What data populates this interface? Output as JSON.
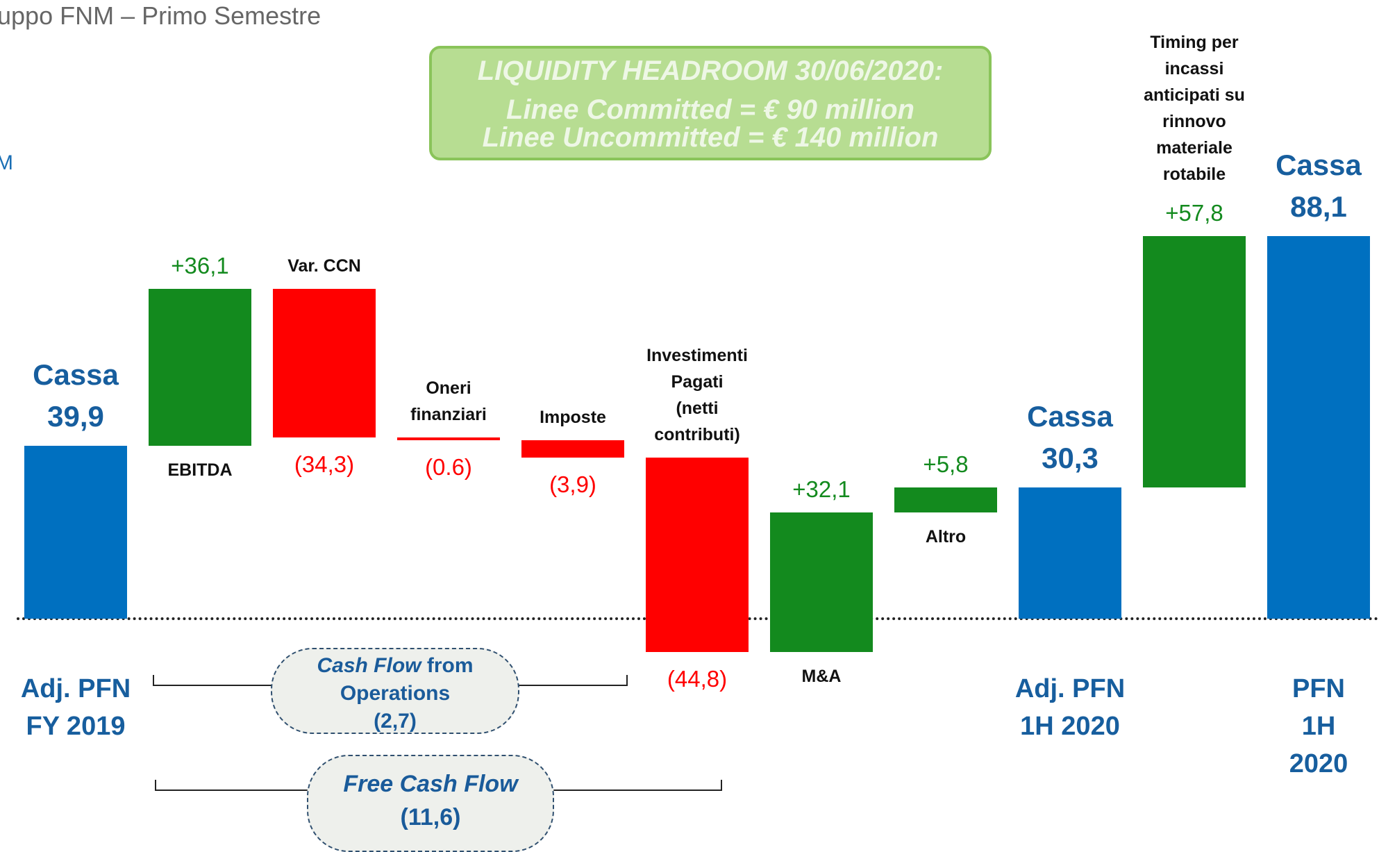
{
  "header": {
    "title": "uppo FNM – Primo Semestre",
    "subtitle": "M"
  },
  "headroom": {
    "title": "LIQUIDITY HEADROOM 30/06/2020:",
    "lines": [
      "Linee Committed = € 90 million",
      "Linee Uncommitted = € 140 million"
    ]
  },
  "chart_data": {
    "type": "waterfall",
    "categories": [
      "Adj. PFN\nFY 2019",
      "EBITDA",
      "Var. CCN",
      "Oneri\nfinanziari",
      "Imposte",
      "Investimenti\nPagati\n(netti\ncontributi)",
      "M&A",
      "Altro",
      "Adj. PFN\n1H 2020",
      "Timing per\nincassi\nanticipati su\nrinnovo\nmateriale\nrotabile",
      "PFN\n1H 2020"
    ],
    "values": [
      39.9,
      36.1,
      -34.3,
      -0.6,
      -3.9,
      -44.8,
      32.1,
      5.8,
      30.3,
      57.8,
      88.1
    ],
    "value_labels": [
      "39,9",
      "+36,1",
      "(34,3)",
      "(0.6)",
      "(3,9)",
      "(44,8)",
      "+32,1",
      "+5,8",
      "30,3",
      "+57,8",
      "88,1"
    ],
    "totals": [
      true,
      false,
      false,
      false,
      false,
      false,
      false,
      false,
      true,
      false,
      true
    ],
    "total_label": "Cassa",
    "colors": {
      "total": "#0070c0",
      "increase": "#138a1e",
      "decrease": "#ff0000"
    },
    "annotations": [
      {
        "italic": "Cash Flow",
        "text": " from Operations",
        "label": "(2,7)"
      },
      {
        "italic": "Free Cash Flow",
        "label": "(11,6)"
      }
    ]
  }
}
